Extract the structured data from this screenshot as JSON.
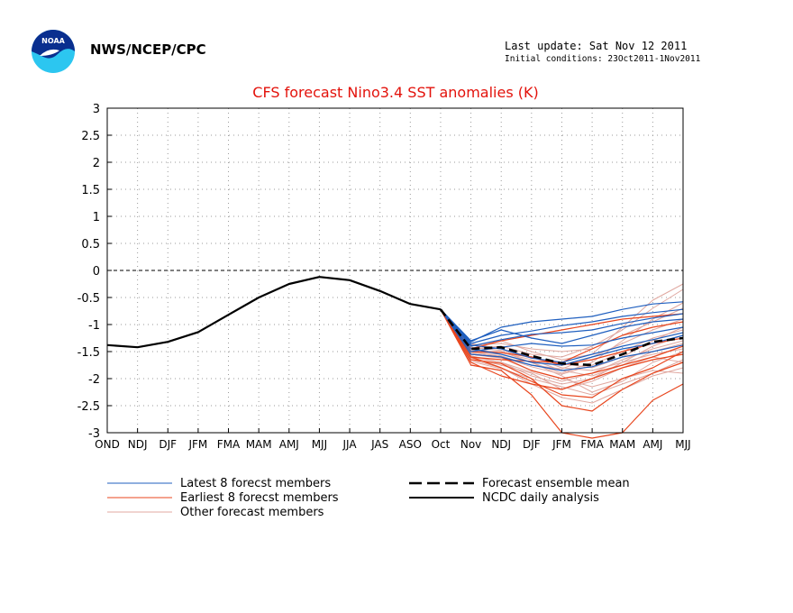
{
  "header": {
    "agency": "NWS/NCEP/CPC",
    "last_update": "Last update: Sat Nov 12 2011",
    "initial_conditions": "Initial conditions: 23Oct2011-1Nov2011",
    "logo_text": "NOAA"
  },
  "chart_data": {
    "type": "line",
    "title": "CFS forecast Nino3.4 SST anomalies (K)",
    "xlabel": "",
    "ylabel": "",
    "categories": [
      "OND",
      "NDJ",
      "DJF",
      "JFM",
      "FMA",
      "MAM",
      "AMJ",
      "MJJ",
      "JJA",
      "JAS",
      "ASO",
      "Oct",
      "Nov",
      "NDJ",
      "DJF",
      "JFM",
      "FMA",
      "MAM",
      "AMJ",
      "MJJ"
    ],
    "ylim": [
      -3,
      3
    ],
    "yticks": [
      "3",
      "2.5",
      "2",
      "1.5",
      "1",
      "0.5",
      "0",
      "-0.5",
      "-1",
      "-1.5",
      "-2",
      "-2.5",
      "-3"
    ],
    "grid": true,
    "legend_position": "bottom",
    "colors": {
      "latest": "#1f5fbf",
      "earliest": "#e8461e",
      "other": "#e0a8a0",
      "analysis": "#000000",
      "mean": "#000000",
      "title": "#e3120b"
    },
    "legend": [
      {
        "label": "Latest 8 forecst members",
        "style": "latest"
      },
      {
        "label": "Earliest 8 forecst members",
        "style": "earliest"
      },
      {
        "label": "Other forecast members",
        "style": "other"
      },
      {
        "label": "Forecast ensemble mean",
        "style": "mean"
      },
      {
        "label": "NCDC daily analysis",
        "style": "analysis"
      }
    ],
    "analysis": {
      "name": "NCDC daily analysis",
      "x": [
        0,
        1,
        2,
        3,
        4,
        5,
        6,
        7,
        8,
        9,
        10,
        11
      ],
      "values": [
        -1.38,
        -1.42,
        -1.32,
        -1.14,
        -0.82,
        -0.5,
        -0.25,
        -0.12,
        -0.18,
        -0.38,
        -0.62,
        -0.72
      ]
    },
    "ensemble_mean": {
      "name": "Forecast ensemble mean",
      "x": [
        11,
        12,
        13,
        14,
        15,
        16,
        17,
        18,
        19
      ],
      "values": [
        -0.72,
        -1.45,
        -1.42,
        -1.58,
        -1.72,
        -1.75,
        -1.55,
        -1.32,
        -1.25
      ]
    },
    "latest_members": {
      "name": "Latest 8 forecst members",
      "x": [
        11,
        12,
        13,
        14,
        15,
        16,
        17,
        18,
        19
      ],
      "series": [
        [
          -0.72,
          -1.32,
          -1.05,
          -0.95,
          -0.9,
          -0.85,
          -0.72,
          -0.62,
          -0.58
        ],
        [
          -0.72,
          -1.35,
          -1.2,
          -1.12,
          -1.02,
          -0.95,
          -0.85,
          -0.78,
          -0.72
        ],
        [
          -0.72,
          -1.4,
          -1.28,
          -1.18,
          -1.15,
          -1.1,
          -0.98,
          -0.88,
          -0.8
        ],
        [
          -0.72,
          -1.3,
          -1.1,
          -1.25,
          -1.35,
          -1.2,
          -1.05,
          -0.95,
          -0.9
        ],
        [
          -0.72,
          -1.5,
          -1.42,
          -1.35,
          -1.4,
          -1.38,
          -1.25,
          -1.15,
          -1.05
        ],
        [
          -0.72,
          -1.45,
          -1.55,
          -1.7,
          -1.75,
          -1.6,
          -1.45,
          -1.35,
          -1.2
        ],
        [
          -0.72,
          -1.55,
          -1.6,
          -1.75,
          -1.85,
          -1.78,
          -1.6,
          -1.5,
          -1.38
        ],
        [
          -0.72,
          -1.38,
          -1.45,
          -1.62,
          -1.7,
          -1.55,
          -1.4,
          -1.28,
          -1.15
        ]
      ]
    },
    "earliest_members": {
      "name": "Earliest 8 forecst members",
      "x": [
        11,
        12,
        13,
        14,
        15,
        16,
        17,
        18,
        19
      ],
      "series": [
        [
          -0.72,
          -1.75,
          -1.85,
          -2.3,
          -3.0,
          -3.1,
          -3.0,
          -2.4,
          -2.1
        ],
        [
          -0.72,
          -1.65,
          -1.72,
          -2.0,
          -2.5,
          -2.6,
          -2.2,
          -1.9,
          -1.7
        ],
        [
          -0.72,
          -1.6,
          -1.8,
          -2.05,
          -2.3,
          -2.35,
          -2.0,
          -1.8,
          -1.5
        ],
        [
          -0.72,
          -1.7,
          -1.95,
          -2.1,
          -2.2,
          -2.0,
          -1.8,
          -1.65,
          -1.55
        ],
        [
          -0.72,
          -1.55,
          -1.6,
          -1.85,
          -2.0,
          -1.9,
          -1.75,
          -1.6,
          -1.4
        ],
        [
          -0.72,
          -1.5,
          -1.52,
          -1.6,
          -1.75,
          -1.65,
          -1.5,
          -1.35,
          -1.25
        ],
        [
          -0.72,
          -1.45,
          -1.3,
          -1.2,
          -1.1,
          -1.0,
          -0.9,
          -0.85,
          -0.8
        ],
        [
          -0.72,
          -1.6,
          -1.65,
          -1.68,
          -1.7,
          -1.45,
          -1.2,
          -1.05,
          -0.95
        ]
      ]
    },
    "other_members": {
      "name": "Other forecast members",
      "x": [
        11,
        12,
        13,
        14,
        15,
        16,
        17,
        18,
        19
      ],
      "series": [
        [
          -0.72,
          -1.4,
          -1.3,
          -1.5,
          -1.65,
          -1.55,
          -1.05,
          -0.55,
          -0.25
        ],
        [
          -0.72,
          -1.45,
          -1.4,
          -1.55,
          -1.6,
          -1.4,
          -1.1,
          -0.7,
          -0.35
        ],
        [
          -0.72,
          -1.5,
          -1.55,
          -1.7,
          -1.9,
          -1.7,
          -1.3,
          -0.9,
          -0.6
        ],
        [
          -0.72,
          -1.6,
          -1.7,
          -1.95,
          -2.1,
          -2.0,
          -1.7,
          -1.4,
          -1.2
        ],
        [
          -0.72,
          -1.65,
          -1.8,
          -2.1,
          -2.35,
          -2.45,
          -2.2,
          -1.95,
          -1.8
        ],
        [
          -0.72,
          -1.55,
          -1.62,
          -1.85,
          -2.0,
          -2.15,
          -2.0,
          -1.85,
          -1.9
        ],
        [
          -0.72,
          -1.35,
          -1.45,
          -1.6,
          -1.8,
          -1.85,
          -1.7,
          -1.55,
          -1.45
        ],
        [
          -0.72,
          -1.48,
          -1.5,
          -1.7,
          -1.95,
          -2.25,
          -2.05,
          -1.7,
          -1.5
        ],
        [
          -0.72,
          -1.52,
          -1.58,
          -1.75,
          -1.82,
          -1.6,
          -1.35,
          -1.1,
          -0.9
        ],
        [
          -0.72,
          -1.42,
          -1.48,
          -1.62,
          -1.72,
          -1.8,
          -1.6,
          -1.3,
          -1.05
        ],
        [
          -0.72,
          -1.58,
          -1.7,
          -1.88,
          -2.05,
          -1.9,
          -1.65,
          -1.45,
          -1.3
        ],
        [
          -0.72,
          -1.62,
          -1.75,
          -1.9,
          -2.2,
          -2.05,
          -1.8,
          -1.6,
          -1.7
        ],
        [
          -0.72,
          -1.38,
          -1.35,
          -1.45,
          -1.5,
          -1.45,
          -1.2,
          -0.95,
          -0.7
        ],
        [
          -0.72,
          -1.5,
          -1.6,
          -1.78,
          -1.92,
          -1.75,
          -1.5,
          -1.25,
          -1.1
        ],
        [
          -0.72,
          -1.45,
          -1.52,
          -1.65,
          -1.85,
          -1.95,
          -1.75,
          -1.5,
          -1.35
        ],
        [
          -0.72,
          -1.68,
          -1.82,
          -2.0,
          -2.15,
          -2.3,
          -2.1,
          -1.9,
          -1.65
        ]
      ]
    }
  }
}
